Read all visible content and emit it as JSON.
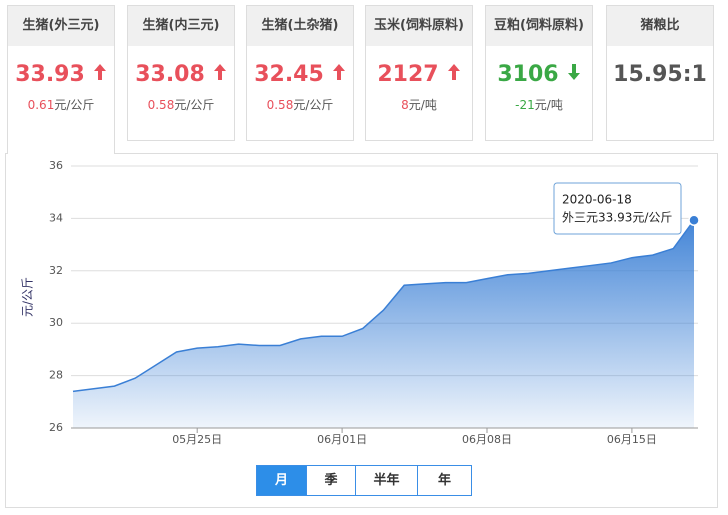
{
  "cards": [
    {
      "title": "生猪(外三元)",
      "value": "33.93",
      "change": "0.61",
      "unit": "元/公斤",
      "direction": "up"
    },
    {
      "title": "生猪(内三元)",
      "value": "33.08",
      "change": "0.58",
      "unit": "元/公斤",
      "direction": "up"
    },
    {
      "title": "生猪(土杂猪)",
      "value": "32.45",
      "change": "0.58",
      "unit": "元/公斤",
      "direction": "up"
    },
    {
      "title": "玉米(饲料原料)",
      "value": "2127",
      "change": "8",
      "unit": "元/吨",
      "direction": "up"
    },
    {
      "title": "豆粕(饲料原料)",
      "value": "3106",
      "change": "-21",
      "unit": "元/吨",
      "direction": "down"
    },
    {
      "title": "猪粮比",
      "value": "15.95:1"
    }
  ],
  "chart_data": {
    "type": "area",
    "ylabel": "元/公斤",
    "color": "#3a7fd5",
    "categories": [
      null,
      null,
      null,
      null,
      null,
      null,
      "05月25日",
      null,
      null,
      null,
      null,
      null,
      null,
      "06月01日",
      null,
      null,
      null,
      null,
      null,
      null,
      "06月08日",
      null,
      null,
      null,
      null,
      null,
      null,
      "06月15日",
      null,
      null,
      null
    ],
    "values": [
      27.4,
      27.5,
      27.6,
      27.9,
      28.4,
      28.9,
      29.05,
      29.1,
      29.2,
      29.15,
      29.15,
      29.4,
      29.5,
      29.5,
      29.8,
      30.5,
      31.45,
      31.5,
      31.55,
      31.55,
      31.7,
      31.85,
      31.9,
      32.0,
      32.1,
      32.2,
      32.3,
      32.5,
      32.6,
      32.85,
      33.93
    ],
    "ylim": [
      26,
      36
    ],
    "yticks": [
      26,
      28,
      30,
      32,
      34,
      36
    ],
    "grid": true,
    "tooltip": {
      "date": "2020-06-18",
      "label": "外三元33.93元/公斤"
    }
  },
  "tabs": {
    "items": [
      "月",
      "季",
      "半年",
      "年"
    ],
    "active": 0
  }
}
